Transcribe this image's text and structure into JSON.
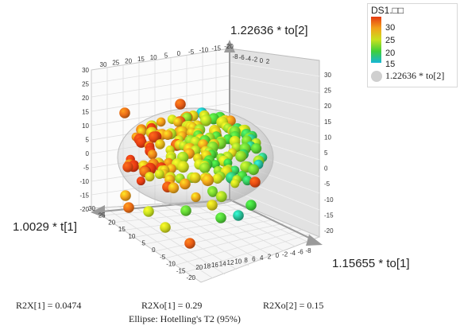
{
  "chart_data": {
    "type": "scatter",
    "projection": "3d",
    "axes": {
      "x": {
        "label": "1.0029 * t[1]",
        "ticks": [
          -20,
          -15,
          -10,
          -5,
          0,
          5,
          10,
          15,
          20,
          25,
          30
        ]
      },
      "y": {
        "label": "1.15655 * to[1]",
        "ticks": [
          -8,
          -6,
          -4,
          -2,
          0,
          2,
          4,
          6,
          8,
          10,
          12,
          14,
          16,
          18,
          20
        ]
      },
      "z": {
        "label": "1.22636 * to[2]",
        "ticks": [
          -20,
          -15,
          -10,
          -5,
          0,
          5,
          10,
          15,
          20,
          25,
          30
        ]
      }
    },
    "color_scale": {
      "title": "DS1.□□",
      "range": [
        15,
        30
      ],
      "ticks": [
        "30",
        "25",
        "20",
        "15"
      ]
    },
    "size_legend": {
      "label": "1.22636 * to[2]"
    },
    "ellipse": {
      "label": "Ellipse: Hotelling's T2 (95%)"
    },
    "grid": true,
    "stats": {
      "r2x1": "R2X[1] = 0.0474",
      "r2xo1": "R2Xo[1] = 0.29",
      "r2xo2": "R2Xo[2] = 0.15"
    }
  },
  "colors": {
    "low": "#16b6d6",
    "mid_low": "#3fcf3a",
    "mid": "#c8e11e",
    "mid_high": "#f2a21a",
    "high": "#e53a12"
  }
}
